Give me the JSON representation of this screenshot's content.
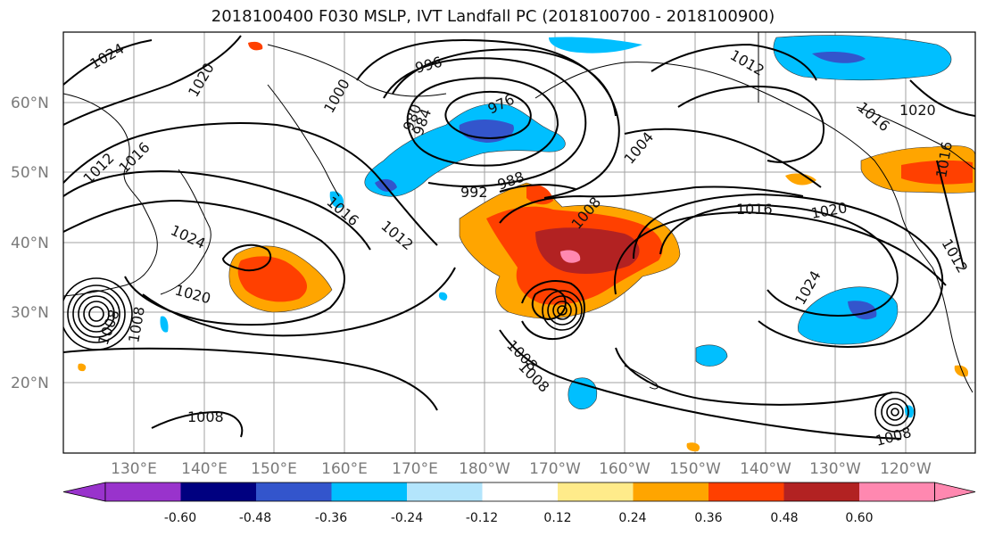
{
  "title": "2018100400 F030 MSLP, IVT Landfall PC (2018100700 - 2018100900)",
  "lat_labels": [
    "60°N",
    "50°N",
    "40°N",
    "30°N",
    "20°N"
  ],
  "lon_labels": [
    "130°E",
    "140°E",
    "150°E",
    "160°E",
    "170°E",
    "180°W",
    "170°W",
    "160°W",
    "150°W",
    "140°W",
    "130°W",
    "120°W"
  ],
  "isobar_labels": [
    "1024",
    "1020",
    "1016",
    "1012",
    "1016",
    "1008",
    "1024",
    "1020",
    "1008",
    "1008",
    "1008",
    "996",
    "1000",
    "980",
    "976",
    "984",
    "988",
    "992",
    "1016",
    "1012",
    "1004",
    "1008",
    "1016",
    "1020",
    "1024",
    "1012",
    "1016",
    "1020",
    "1016",
    "1012",
    "1008",
    "1008"
  ],
  "colorbar": {
    "tick_labels": [
      "-0.60",
      "-0.48",
      "-0.36",
      "-0.24",
      "-0.12",
      "0.12",
      "0.24",
      "0.36",
      "0.48",
      "0.60"
    ],
    "colors": [
      "#9933cc",
      "#000080",
      "#3355cc",
      "#00bfff",
      "#b3e5fc",
      "#ffffff",
      "#ffeb8a",
      "#ffa500",
      "#ff4000",
      "#b22222",
      "#ff88b0"
    ]
  }
}
